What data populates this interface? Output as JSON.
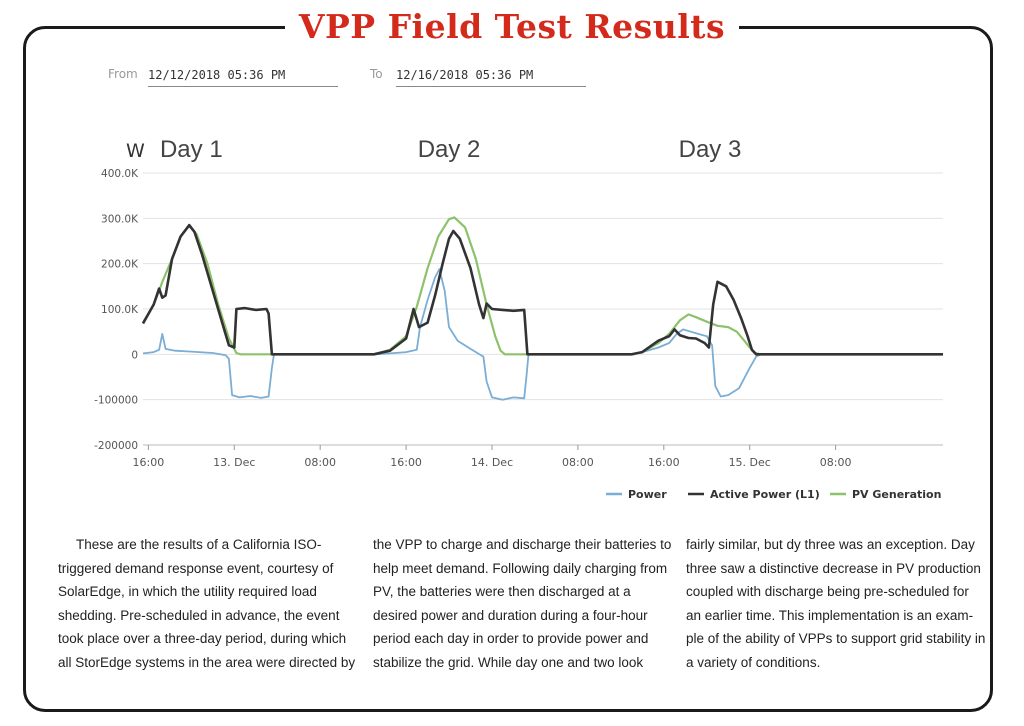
{
  "title": "VPP Field Test Results",
  "date_range": {
    "from_label": "From",
    "from_value": "12/12/2018 05:36 PM",
    "to_label": "To",
    "to_value": "12/16/2018 05:36 PM"
  },
  "chart_data": {
    "type": "line",
    "ylabel": "W",
    "ylim": [
      -200000,
      400000
    ],
    "yticks": [
      {
        "v": 400000,
        "label": "400.0K"
      },
      {
        "v": 300000,
        "label": "300.0K"
      },
      {
        "v": 200000,
        "label": "200.0K"
      },
      {
        "v": 100000,
        "label": "100.0K"
      },
      {
        "v": 0,
        "label": "0"
      },
      {
        "v": -100000,
        "label": "-100000"
      },
      {
        "v": -200000,
        "label": "-200000"
      }
    ],
    "xlim": [
      15.5,
      90
    ],
    "xticks": [
      {
        "h": 16,
        "label": "16:00"
      },
      {
        "h": 24,
        "label": "13. Dec"
      },
      {
        "h": 32,
        "label": "08:00"
      },
      {
        "h": 40,
        "label": "16:00"
      },
      {
        "h": 48,
        "label": "14. Dec"
      },
      {
        "h": 56,
        "label": "08:00"
      },
      {
        "h": 64,
        "label": "16:00"
      },
      {
        "h": 72,
        "label": "15. Dec"
      },
      {
        "h": 80,
        "label": "08:00"
      }
    ],
    "x_unit": "hours from 12 Dec 00:00",
    "annotations": [
      {
        "h": 20,
        "text": "Day 1"
      },
      {
        "h": 44,
        "text": "Day 2"
      },
      {
        "h": 68.3,
        "text": "Day 3"
      }
    ],
    "grid": true,
    "legend_position": "bottom-right",
    "series": [
      {
        "name": "Power",
        "color": "#7aaed6",
        "points": [
          [
            15.5,
            2000
          ],
          [
            16.5,
            5000
          ],
          [
            17,
            10000
          ],
          [
            17.3,
            45000
          ],
          [
            17.6,
            12000
          ],
          [
            18.5,
            8000
          ],
          [
            20,
            6000
          ],
          [
            22,
            3000
          ],
          [
            23.2,
            -2000
          ],
          [
            23.5,
            -10000
          ],
          [
            23.8,
            -90000
          ],
          [
            24.5,
            -95000
          ],
          [
            25.5,
            -92000
          ],
          [
            26.5,
            -96000
          ],
          [
            27.2,
            -93000
          ],
          [
            27.5,
            -30000
          ],
          [
            27.7,
            0
          ],
          [
            37,
            0
          ],
          [
            38.5,
            2000
          ],
          [
            40,
            5000
          ],
          [
            41,
            10000
          ],
          [
            41.3,
            60000
          ],
          [
            42,
            120000
          ],
          [
            42.7,
            170000
          ],
          [
            43.1,
            188000
          ],
          [
            43.6,
            140000
          ],
          [
            44,
            60000
          ],
          [
            44.8,
            30000
          ],
          [
            46,
            12000
          ],
          [
            47.2,
            -5000
          ],
          [
            47.5,
            -60000
          ],
          [
            48,
            -95000
          ],
          [
            49,
            -100000
          ],
          [
            50,
            -95000
          ],
          [
            51,
            -97000
          ],
          [
            51.2,
            -50000
          ],
          [
            51.4,
            0
          ],
          [
            61,
            0
          ],
          [
            62,
            5000
          ],
          [
            63.5,
            15000
          ],
          [
            64.5,
            25000
          ],
          [
            65.2,
            45000
          ],
          [
            65.8,
            55000
          ],
          [
            66.5,
            50000
          ],
          [
            67.2,
            45000
          ],
          [
            68,
            40000
          ],
          [
            68.5,
            20000
          ],
          [
            68.8,
            -70000
          ],
          [
            69.3,
            -93000
          ],
          [
            70,
            -90000
          ],
          [
            71,
            -75000
          ],
          [
            72,
            -30000
          ],
          [
            72.6,
            -5000
          ],
          [
            73,
            0
          ],
          [
            90,
            0
          ]
        ]
      },
      {
        "name": "Active Power (L1)",
        "color": "#333333",
        "points": [
          [
            15.5,
            68000
          ],
          [
            16.5,
            110000
          ],
          [
            17,
            145000
          ],
          [
            17.3,
            125000
          ],
          [
            17.6,
            130000
          ],
          [
            18.2,
            210000
          ],
          [
            19,
            260000
          ],
          [
            19.8,
            285000
          ],
          [
            20.3,
            270000
          ],
          [
            21,
            220000
          ],
          [
            22,
            140000
          ],
          [
            23,
            60000
          ],
          [
            23.5,
            20000
          ],
          [
            24,
            15000
          ],
          [
            24.2,
            100000
          ],
          [
            25,
            102000
          ],
          [
            26,
            98000
          ],
          [
            27,
            100000
          ],
          [
            27.2,
            90000
          ],
          [
            27.5,
            0
          ],
          [
            37,
            0
          ],
          [
            38.5,
            8000
          ],
          [
            40,
            35000
          ],
          [
            40.7,
            100000
          ],
          [
            41.2,
            60000
          ],
          [
            42,
            70000
          ],
          [
            42.7,
            130000
          ],
          [
            43.4,
            200000
          ],
          [
            44,
            255000
          ],
          [
            44.4,
            272000
          ],
          [
            45,
            255000
          ],
          [
            46,
            190000
          ],
          [
            46.8,
            110000
          ],
          [
            47.2,
            80000
          ],
          [
            47.5,
            112000
          ],
          [
            48,
            100000
          ],
          [
            49,
            98000
          ],
          [
            50,
            96000
          ],
          [
            51,
            98000
          ],
          [
            51.3,
            0
          ],
          [
            61,
            0
          ],
          [
            62,
            5000
          ],
          [
            63.5,
            30000
          ],
          [
            64.5,
            40000
          ],
          [
            65,
            55000
          ],
          [
            65.5,
            42000
          ],
          [
            66.3,
            36000
          ],
          [
            67,
            35000
          ],
          [
            67.8,
            25000
          ],
          [
            68.2,
            15000
          ],
          [
            68.6,
            110000
          ],
          [
            69,
            160000
          ],
          [
            69.8,
            150000
          ],
          [
            70.5,
            120000
          ],
          [
            71.2,
            80000
          ],
          [
            71.8,
            40000
          ],
          [
            72.2,
            10000
          ],
          [
            72.6,
            0
          ],
          [
            90,
            0
          ]
        ]
      },
      {
        "name": "PV Generation",
        "color": "#8dc26b",
        "points": [
          [
            15.5,
            70000
          ],
          [
            16.5,
            110000
          ],
          [
            17,
            140000
          ],
          [
            17.3,
            160000
          ],
          [
            18.2,
            210000
          ],
          [
            19,
            260000
          ],
          [
            19.8,
            283000
          ],
          [
            20.5,
            265000
          ],
          [
            21.5,
            200000
          ],
          [
            22.5,
            110000
          ],
          [
            23.5,
            35000
          ],
          [
            24.2,
            3000
          ],
          [
            24.6,
            0
          ],
          [
            37,
            0
          ],
          [
            38.5,
            10000
          ],
          [
            40,
            40000
          ],
          [
            41,
            105000
          ],
          [
            42,
            190000
          ],
          [
            43,
            260000
          ],
          [
            44,
            298000
          ],
          [
            44.5,
            302000
          ],
          [
            45.5,
            280000
          ],
          [
            46.5,
            210000
          ],
          [
            47.5,
            110000
          ],
          [
            48.3,
            40000
          ],
          [
            48.8,
            8000
          ],
          [
            49.2,
            0
          ],
          [
            61,
            0
          ],
          [
            62,
            5000
          ],
          [
            63.5,
            25000
          ],
          [
            64.5,
            45000
          ],
          [
            65.5,
            75000
          ],
          [
            66.3,
            88000
          ],
          [
            67,
            82000
          ],
          [
            68,
            72000
          ],
          [
            69,
            63000
          ],
          [
            70,
            60000
          ],
          [
            70.8,
            50000
          ],
          [
            71.5,
            30000
          ],
          [
            72,
            15000
          ],
          [
            72.5,
            3000
          ],
          [
            73,
            0
          ],
          [
            90,
            0
          ]
        ]
      }
    ]
  },
  "paragraphs": [
    "These are the results of a California ISO-triggered demand response event, courtesy of SolarEdge, in which the utility required load shedding. Pre-scheduled in advance, the event took place over a three-day period, during which all StorEdge systems in the area were directed by",
    "the VPP to charge and discharge their batteries to help meet demand. Following daily charging from PV, the batteries were then discharged at a desired power and duration during a four-hour period each day in order to provide power and stabilize the grid. While day one and two look",
    "fairly similar, but dy three was an exception. Day three saw a distinctive decrease in PV production coupled with discharge being pre-scheduled for an earlier time. This implementation is an exam-ple of the ability of VPPs to support grid stability in a variety of conditions."
  ]
}
